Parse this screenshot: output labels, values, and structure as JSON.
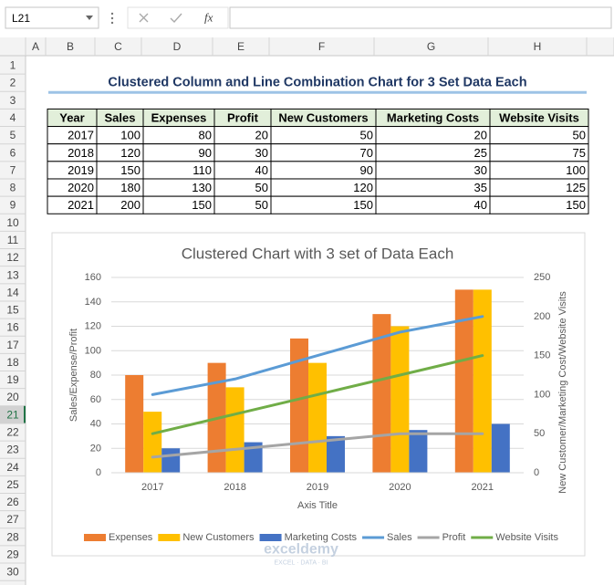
{
  "name_box": "L21",
  "formula_bar": {
    "function_label": "fx"
  },
  "column_headers": [
    "A",
    "B",
    "C",
    "D",
    "E",
    "F",
    "G",
    "H"
  ],
  "row_headers": [
    1,
    2,
    3,
    4,
    5,
    6,
    7,
    8,
    9,
    10,
    11,
    12,
    13,
    14,
    15,
    16,
    17,
    18,
    19,
    20,
    21,
    22,
    23,
    24,
    25,
    26,
    27,
    28,
    29,
    30
  ],
  "sheet_title": "Clustered Column and Line Combination Chart for 3 Set Data Each",
  "table": {
    "header": [
      "Year",
      "Sales",
      "Expenses",
      "Profit",
      "New Customers",
      "Marketing Costs",
      "Website Visits"
    ],
    "rows": [
      [
        2017,
        100,
        80,
        20,
        50,
        20,
        50
      ],
      [
        2018,
        120,
        90,
        30,
        70,
        25,
        75
      ],
      [
        2019,
        150,
        110,
        40,
        90,
        30,
        100
      ],
      [
        2020,
        180,
        130,
        50,
        120,
        35,
        125
      ],
      [
        2021,
        200,
        150,
        50,
        150,
        40,
        150
      ]
    ]
  },
  "chart_data": {
    "type": "combo",
    "title": "Clustered Chart with 3 set of Data Each",
    "xlabel": "Axis Title",
    "ylabel": "Sales/Expense/Profit",
    "y2label": "New Customer/Marketing Cost/Website Visits",
    "categories": [
      "2017",
      "2018",
      "2019",
      "2020",
      "2021"
    ],
    "series": [
      {
        "name": "Expenses",
        "type": "bar",
        "color": "#ed7d31",
        "values": [
          80,
          90,
          110,
          130,
          150
        ]
      },
      {
        "name": "New Customers",
        "type": "bar",
        "color": "#ffc000",
        "values": [
          50,
          70,
          90,
          120,
          150
        ]
      },
      {
        "name": "Marketing Costs",
        "type": "bar",
        "color": "#4472c4",
        "values": [
          20,
          25,
          30,
          35,
          40
        ]
      },
      {
        "name": "Sales",
        "type": "line",
        "axis": "y2",
        "color": "#5b9bd5",
        "values": [
          100,
          120,
          150,
          180,
          200
        ]
      },
      {
        "name": "Profit",
        "type": "line",
        "axis": "y2",
        "color": "#a5a5a5",
        "values": [
          20,
          30,
          40,
          50,
          50
        ]
      },
      {
        "name": "Website Visits",
        "type": "line",
        "axis": "y2",
        "color": "#70ad47",
        "values": [
          50,
          75,
          100,
          125,
          150
        ]
      }
    ],
    "ylim": [
      0,
      160
    ],
    "yticks": [
      0,
      20,
      40,
      60,
      80,
      100,
      120,
      140,
      160
    ],
    "y2lim": [
      0,
      250
    ],
    "y2ticks": [
      0,
      50,
      100,
      150,
      200,
      250
    ],
    "grid": true,
    "legend": "bottom"
  },
  "watermark": {
    "name": "exceldemy",
    "tagline": "EXCEL · DATA · BI"
  }
}
